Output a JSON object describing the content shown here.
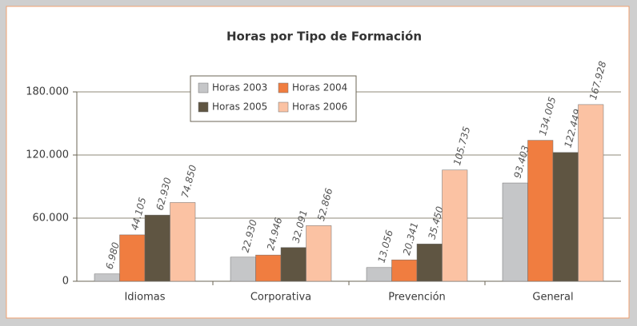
{
  "chart_data": {
    "type": "bar",
    "title": "Horas por Tipo de Formación",
    "categories": [
      "Idiomas",
      "Corporativa",
      "Prevención",
      "General"
    ],
    "series": [
      {
        "name": "Horas 2003",
        "color": "#c5c6c8",
        "values": [
          6980,
          22930,
          13056,
          93403
        ],
        "value_labels": [
          "6.980",
          "22.930",
          "13.056",
          "93.403"
        ]
      },
      {
        "name": "Horas 2004",
        "color": "#f07d40",
        "values": [
          44105,
          24946,
          20341,
          134005
        ],
        "value_labels": [
          "44.105",
          "24.946",
          "20.341",
          "134.005"
        ]
      },
      {
        "name": "Horas 2005",
        "color": "#5f5542",
        "values": [
          62930,
          32091,
          35450,
          122449
        ],
        "value_labels": [
          "62.930",
          "32.091",
          "35.450",
          "122.449"
        ]
      },
      {
        "name": "Horas 2006",
        "color": "#fbc2a3",
        "values": [
          74850,
          52866,
          105735,
          167928
        ],
        "value_labels": [
          "74.850",
          "52.866",
          "105.735",
          "167.928"
        ]
      }
    ],
    "ylim": [
      0,
      180000
    ],
    "yticks": [
      {
        "value": 0,
        "label": "0"
      },
      {
        "value": 60000,
        "label": "60.000"
      },
      {
        "value": 120000,
        "label": "120.000"
      },
      {
        "value": 180000,
        "label": "180.000"
      }
    ],
    "grid": true
  }
}
